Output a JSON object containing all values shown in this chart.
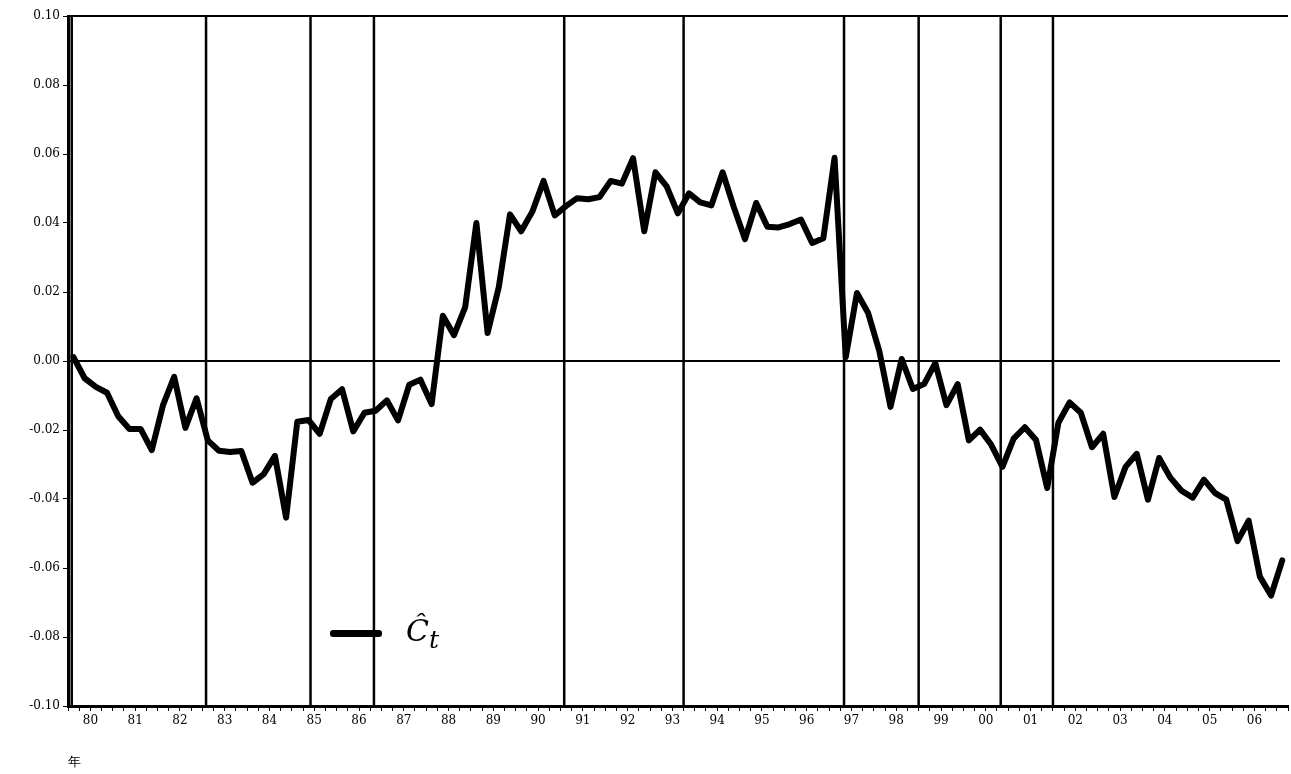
{
  "chart_data": {
    "type": "line",
    "xlabel": "年",
    "legend": "bottom left",
    "grid": false,
    "marker": "none",
    "line_style": "solid",
    "xlim": [
      "1980-01-01",
      "2007-04-01"
    ],
    "ylim": [
      -0.1,
      0.1
    ],
    "yticks": [
      {
        "value": -0.1,
        "label": "-0.10"
      },
      {
        "value": -0.08,
        "label": "-0.08"
      },
      {
        "value": -0.06,
        "label": "-0.06"
      },
      {
        "value": -0.04,
        "label": "-0.04"
      },
      {
        "value": -0.02,
        "label": "-0.02"
      },
      {
        "value": 0,
        "label": "0.00"
      },
      {
        "value": 0.02,
        "label": "0.02"
      },
      {
        "value": 0.04,
        "label": "0.04"
      },
      {
        "value": 0.06,
        "label": "0.06"
      },
      {
        "value": 0.08,
        "label": "0.08"
      },
      {
        "value": 0.1,
        "label": "0.10"
      }
    ],
    "xticks": [
      {
        "value": "1980-01-01",
        "label": null
      },
      {
        "value": "1980-04-01",
        "label": null
      },
      {
        "value": "1980-07-01",
        "label": "80"
      },
      {
        "value": "1980-10-01",
        "label": null
      },
      {
        "value": "1981-01-01",
        "label": null
      },
      {
        "value": "1981-04-01",
        "label": null
      },
      {
        "value": "1981-07-01",
        "label": "81"
      },
      {
        "value": "1981-10-01",
        "label": null
      },
      {
        "value": "1982-01-01",
        "label": null
      },
      {
        "value": "1982-04-01",
        "label": null
      },
      {
        "value": "1982-07-01",
        "label": "82"
      },
      {
        "value": "1982-10-01",
        "label": null
      },
      {
        "value": "1983-01-01",
        "label": null
      },
      {
        "value": "1983-04-01",
        "label": null
      },
      {
        "value": "1983-07-01",
        "label": "83"
      },
      {
        "value": "1983-10-01",
        "label": null
      },
      {
        "value": "1984-01-01",
        "label": null
      },
      {
        "value": "1984-04-01",
        "label": null
      },
      {
        "value": "1984-07-01",
        "label": "84"
      },
      {
        "value": "1984-10-01",
        "label": null
      },
      {
        "value": "1985-01-01",
        "label": null
      },
      {
        "value": "1985-04-01",
        "label": null
      },
      {
        "value": "1985-07-01",
        "label": "85"
      },
      {
        "value": "1985-10-01",
        "label": null
      },
      {
        "value": "1986-01-01",
        "label": null
      },
      {
        "value": "1986-04-01",
        "label": null
      },
      {
        "value": "1986-07-01",
        "label": "86"
      },
      {
        "value": "1986-10-01",
        "label": null
      },
      {
        "value": "1987-01-01",
        "label": null
      },
      {
        "value": "1987-04-01",
        "label": null
      },
      {
        "value": "1987-07-01",
        "label": "87"
      },
      {
        "value": "1987-10-01",
        "label": null
      },
      {
        "value": "1988-01-01",
        "label": null
      },
      {
        "value": "1988-04-01",
        "label": null
      },
      {
        "value": "1988-07-01",
        "label": "88"
      },
      {
        "value": "1988-10-01",
        "label": null
      },
      {
        "value": "1989-01-01",
        "label": null
      },
      {
        "value": "1989-04-01",
        "label": null
      },
      {
        "value": "1989-07-01",
        "label": "89"
      },
      {
        "value": "1989-10-01",
        "label": null
      },
      {
        "value": "1990-01-01",
        "label": null
      },
      {
        "value": "1990-04-01",
        "label": null
      },
      {
        "value": "1990-07-01",
        "label": "90"
      },
      {
        "value": "1990-10-01",
        "label": null
      },
      {
        "value": "1991-01-01",
        "label": null
      },
      {
        "value": "1991-04-01",
        "label": null
      },
      {
        "value": "1991-07-01",
        "label": "91"
      },
      {
        "value": "1991-10-01",
        "label": null
      },
      {
        "value": "1992-01-01",
        "label": null
      },
      {
        "value": "1992-04-01",
        "label": null
      },
      {
        "value": "1992-07-01",
        "label": "92"
      },
      {
        "value": "1992-10-01",
        "label": null
      },
      {
        "value": "1993-01-01",
        "label": null
      },
      {
        "value": "1993-04-01",
        "label": null
      },
      {
        "value": "1993-07-01",
        "label": "93"
      },
      {
        "value": "1993-10-01",
        "label": null
      },
      {
        "value": "1994-01-01",
        "label": null
      },
      {
        "value": "1994-04-01",
        "label": null
      },
      {
        "value": "1994-07-01",
        "label": "94"
      },
      {
        "value": "1994-10-01",
        "label": null
      },
      {
        "value": "1995-01-01",
        "label": null
      },
      {
        "value": "1995-04-01",
        "label": null
      },
      {
        "value": "1995-07-01",
        "label": "95"
      },
      {
        "value": "1995-10-01",
        "label": null
      },
      {
        "value": "1996-01-01",
        "label": null
      },
      {
        "value": "1996-04-01",
        "label": null
      },
      {
        "value": "1996-07-01",
        "label": "96"
      },
      {
        "value": "1996-10-01",
        "label": null
      },
      {
        "value": "1997-01-01",
        "label": null
      },
      {
        "value": "1997-04-01",
        "label": null
      },
      {
        "value": "1997-07-01",
        "label": "97"
      },
      {
        "value": "1997-10-01",
        "label": null
      },
      {
        "value": "1998-01-01",
        "label": null
      },
      {
        "value": "1998-04-01",
        "label": null
      },
      {
        "value": "1998-07-01",
        "label": "98"
      },
      {
        "value": "1998-10-01",
        "label": null
      },
      {
        "value": "1999-01-01",
        "label": null
      },
      {
        "value": "1999-04-01",
        "label": null
      },
      {
        "value": "1999-07-01",
        "label": "99"
      },
      {
        "value": "1999-10-01",
        "label": null
      },
      {
        "value": "2000-01-01",
        "label": null
      },
      {
        "value": "2000-04-01",
        "label": null
      },
      {
        "value": "2000-07-01",
        "label": "00"
      },
      {
        "value": "2000-10-01",
        "label": null
      },
      {
        "value": "2001-01-01",
        "label": null
      },
      {
        "value": "2001-04-01",
        "label": null
      },
      {
        "value": "2001-07-01",
        "label": "01"
      },
      {
        "value": "2001-10-01",
        "label": null
      },
      {
        "value": "2002-01-01",
        "label": null
      },
      {
        "value": "2002-04-01",
        "label": null
      },
      {
        "value": "2002-07-01",
        "label": "02"
      },
      {
        "value": "2002-10-01",
        "label": null
      },
      {
        "value": "2003-01-01",
        "label": null
      },
      {
        "value": "2003-04-01",
        "label": null
      },
      {
        "value": "2003-07-01",
        "label": "03"
      },
      {
        "value": "2003-10-01",
        "label": null
      },
      {
        "value": "2004-01-01",
        "label": null
      },
      {
        "value": "2004-04-01",
        "label": null
      },
      {
        "value": "2004-07-01",
        "label": "04"
      },
      {
        "value": "2004-10-01",
        "label": null
      },
      {
        "value": "2005-01-01",
        "label": null
      },
      {
        "value": "2005-04-01",
        "label": null
      },
      {
        "value": "2005-07-01",
        "label": "05"
      },
      {
        "value": "2005-10-01",
        "label": null
      },
      {
        "value": "2006-01-01",
        "label": null
      },
      {
        "value": "2006-04-01",
        "label": null
      },
      {
        "value": "2006-07-01",
        "label": "06"
      },
      {
        "value": "2006-10-01",
        "label": null
      },
      {
        "value": "2007-01-01",
        "label": null
      },
      {
        "value": "2007-04-01",
        "label": null
      }
    ],
    "ref_lines": [
      {
        "axis": "y",
        "value": 0
      },
      {
        "axis": "x",
        "value": "1980-02"
      },
      {
        "axis": "x",
        "value": "1983-02"
      },
      {
        "axis": "x",
        "value": "1985-06"
      },
      {
        "axis": "x",
        "value": "1986-11"
      },
      {
        "axis": "x",
        "value": "1991-02"
      },
      {
        "axis": "x",
        "value": "1993-10"
      },
      {
        "axis": "x",
        "value": "1997-05"
      },
      {
        "axis": "x",
        "value": "1999-01"
      },
      {
        "axis": "x",
        "value": "2000-11"
      },
      {
        "axis": "x",
        "value": "2002-01"
      }
    ],
    "x": [
      "1980-02-15",
      "1980-05-15",
      "1980-08-15",
      "1980-11-15",
      "1981-02-15",
      "1981-05-15",
      "1981-08-15",
      "1981-11-15",
      "1982-02-15",
      "1982-05-15",
      "1982-08-15",
      "1982-11-15",
      "1983-02-15",
      "1983-05-15",
      "1983-08-15",
      "1983-11-15",
      "1984-02-15",
      "1984-05-15",
      "1984-08-15",
      "1984-11-15",
      "1985-02-15",
      "1985-05-15",
      "1985-08-15",
      "1985-11-15",
      "1986-02-15",
      "1986-05-15",
      "1986-08-15",
      "1986-11-15",
      "1987-02-15",
      "1987-05-15",
      "1987-08-15",
      "1987-11-15",
      "1988-02-15",
      "1988-05-15",
      "1988-08-15",
      "1988-11-15",
      "1989-02-15",
      "1989-05-15",
      "1989-08-15",
      "1989-11-15",
      "1990-02-15",
      "1990-05-15",
      "1990-08-15",
      "1990-11-15",
      "1991-02-15",
      "1991-05-15",
      "1991-08-15",
      "1991-11-15",
      "1992-02-15",
      "1992-05-15",
      "1992-08-15",
      "1992-11-15",
      "1993-02-15",
      "1993-05-15",
      "1993-08-15",
      "1993-11-15",
      "1994-02-15",
      "1994-05-15",
      "1994-08-15",
      "1994-11-15",
      "1995-02-15",
      "1995-05-15",
      "1995-08-15",
      "1995-11-15",
      "1996-02-15",
      "1996-05-15",
      "1996-08-15",
      "1996-11-15",
      "1997-02-15",
      "1997-05-15",
      "1997-08-15",
      "1997-11-15",
      "1998-02-15",
      "1998-05-15",
      "1998-08-15",
      "1998-11-15",
      "1999-02-15",
      "1999-05-15",
      "1999-08-15",
      "1999-11-15",
      "2000-02-15",
      "2000-05-15",
      "2000-08-15",
      "2000-11-15",
      "2001-02-15",
      "2001-05-15",
      "2001-08-15",
      "2001-11-15",
      "2002-02-15",
      "2002-05-15",
      "2002-08-15",
      "2002-11-15",
      "2003-02-15",
      "2003-05-15",
      "2003-08-15",
      "2003-11-15",
      "2004-02-15",
      "2004-05-15",
      "2004-08-15",
      "2004-11-15",
      "2005-02-15",
      "2005-05-15",
      "2005-08-15",
      "2005-11-15",
      "2006-02-15",
      "2006-05-15",
      "2006-08-15",
      "2006-11-15",
      "2007-02-15"
    ],
    "series": [
      {
        "name": "Ĉ$_{t}$",
        "color": "#000000",
        "values": [
          0.0011,
          -0.005,
          -0.0075,
          -0.0092,
          -0.016,
          -0.0197,
          -0.0197,
          -0.0258,
          -0.0128,
          -0.0046,
          -0.0194,
          -0.0108,
          -0.023,
          -0.026,
          -0.0264,
          -0.0261,
          -0.0353,
          -0.0328,
          -0.0275,
          -0.0454,
          -0.0176,
          -0.0171,
          -0.0211,
          -0.011,
          -0.0082,
          -0.0204,
          -0.015,
          -0.0144,
          -0.0114,
          -0.0172,
          -0.0069,
          -0.0054,
          -0.0125,
          0.0131,
          0.0075,
          0.0156,
          0.04,
          0.0081,
          0.0214,
          0.0425,
          0.0376,
          0.0433,
          0.0522,
          0.0422,
          0.0449,
          0.0472,
          0.0469,
          0.0475,
          0.0522,
          0.0514,
          0.0588,
          0.0376,
          0.0547,
          0.0506,
          0.0428,
          0.0486,
          0.046,
          0.0451,
          0.0547,
          0.0446,
          0.0353,
          0.0458,
          0.0389,
          0.0387,
          0.0397,
          0.041,
          0.0342,
          0.0356,
          0.0589,
          0.0011,
          0.0197,
          0.0139,
          0.0029,
          -0.0133,
          0.0006,
          -0.0081,
          -0.0067,
          -0.0006,
          -0.0128,
          -0.0067,
          -0.023,
          -0.0199,
          -0.0243,
          -0.0307,
          -0.0225,
          -0.0192,
          -0.0229,
          -0.0368,
          -0.0179,
          -0.012,
          -0.015,
          -0.025,
          -0.0211,
          -0.0394,
          -0.0307,
          -0.0269,
          -0.0402,
          -0.0281,
          -0.0338,
          -0.0376,
          -0.0396,
          -0.0344,
          -0.0383,
          -0.0402,
          -0.0522,
          -0.0463,
          -0.0625,
          -0.068,
          -0.0578
        ]
      }
    ]
  }
}
